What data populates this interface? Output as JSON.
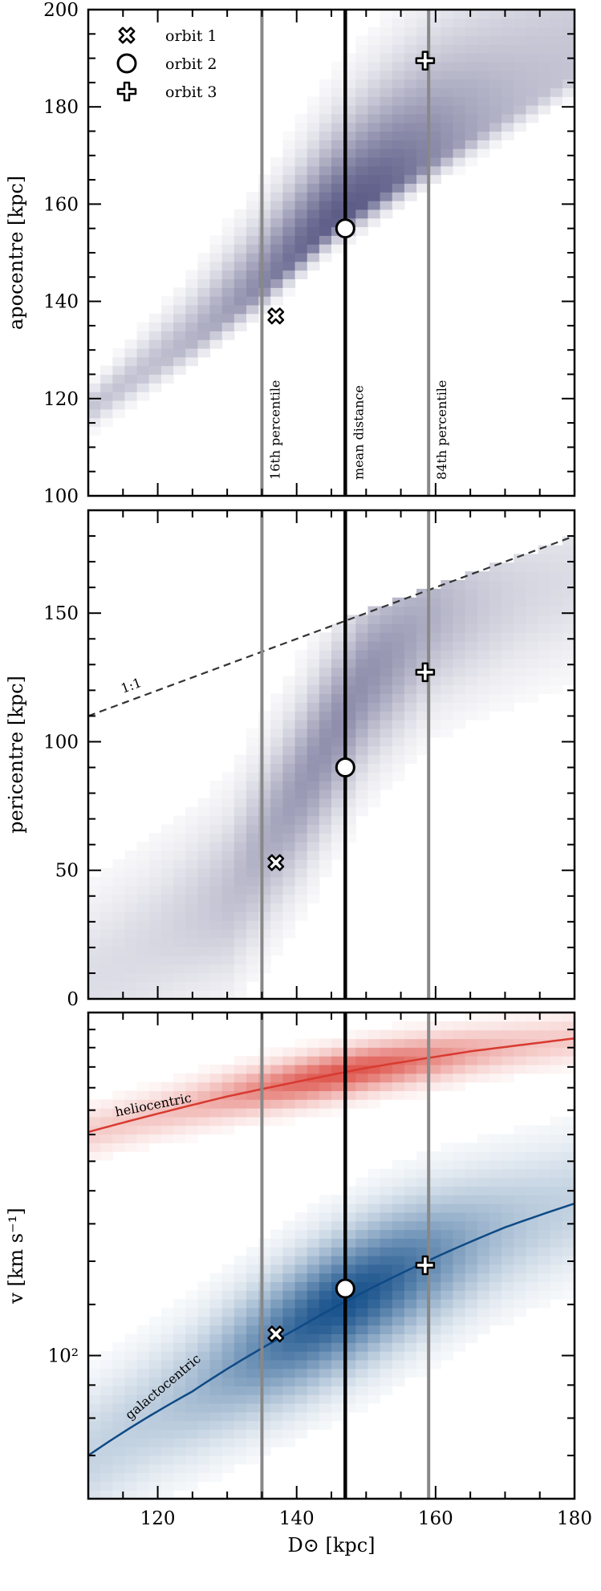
{
  "chart_data": [
    {
      "type": "heatmap",
      "panel": "apocentre",
      "ylabel": "apocentre [kpc]",
      "xlim": [
        110,
        180
      ],
      "ylim": [
        100,
        200
      ],
      "yticks": [
        100,
        120,
        140,
        160,
        180,
        200
      ],
      "colormap": "#4a4a7a",
      "ridge": [
        [
          110,
          118
        ],
        [
          125,
          132
        ],
        [
          135,
          143
        ],
        [
          145,
          156
        ],
        [
          160,
          170
        ],
        [
          175,
          183
        ]
      ],
      "legend": [
        {
          "marker": "x",
          "label": "orbit 1"
        },
        {
          "marker": "circle",
          "label": "orbit 2"
        },
        {
          "marker": "plus",
          "label": "orbit 3"
        }
      ],
      "vlines": [
        {
          "x": 135,
          "label": "16th percentile",
          "color": "#888888"
        },
        {
          "x": 147,
          "label": "mean distance",
          "color": "#000000"
        },
        {
          "x": 159,
          "label": "84th percentile",
          "color": "#888888"
        }
      ],
      "orbits": [
        {
          "marker": "x",
          "x": 137,
          "y": 137
        },
        {
          "marker": "circle",
          "x": 147,
          "y": 155
        },
        {
          "marker": "plus",
          "x": 158.5,
          "y": 189.5
        }
      ]
    },
    {
      "type": "heatmap",
      "panel": "pericentre",
      "ylabel": "pericentre [kpc]",
      "xlim": [
        110,
        180
      ],
      "ylim": [
        0,
        190
      ],
      "yticks": [
        0,
        50,
        100,
        150
      ],
      "colormap": "#4a4a7a",
      "oneToOne": {
        "label": "1:1",
        "points": [
          [
            110,
            110
          ],
          [
            180,
            180
          ]
        ]
      },
      "ridge": [
        [
          115,
          15
        ],
        [
          130,
          40
        ],
        [
          140,
          80
        ],
        [
          150,
          125
        ],
        [
          160,
          150
        ],
        [
          175,
          160
        ]
      ],
      "vlines": [
        {
          "x": 135,
          "color": "#888888"
        },
        {
          "x": 147,
          "color": "#000000"
        },
        {
          "x": 159,
          "color": "#888888"
        }
      ],
      "orbits": [
        {
          "marker": "x",
          "x": 137,
          "y": 53
        },
        {
          "marker": "circle",
          "x": 147,
          "y": 90
        },
        {
          "marker": "plus",
          "x": 158.5,
          "y": 127
        }
      ]
    },
    {
      "type": "heatmap",
      "panel": "velocity",
      "ylabel": "v [km s⁻¹]",
      "xlabel": "D⊙ [kpc]",
      "xlim": [
        110,
        180
      ],
      "xticks": [
        120,
        140,
        160,
        180
      ],
      "yscale": "log",
      "ylim": [
        60,
        340
      ],
      "ytick_major": [
        {
          "value": 100,
          "label": "10²"
        }
      ],
      "series": [
        {
          "name": "heliocentric",
          "color": "#d83a30",
          "curve": [
            [
              110,
              222
            ],
            [
              130,
              252
            ],
            [
              150,
              279
            ],
            [
              165,
              296
            ],
            [
              180,
              310
            ]
          ]
        },
        {
          "name": "galactocentric",
          "color": "#0e4a86",
          "curve": [
            [
              110,
              70
            ],
            [
              125,
              88
            ],
            [
              140,
              110
            ],
            [
              150,
              126
            ],
            [
              160,
              142
            ],
            [
              170,
              158
            ],
            [
              180,
              172
            ]
          ]
        }
      ],
      "vlines": [
        {
          "x": 135,
          "color": "#888888"
        },
        {
          "x": 147,
          "color": "#000000"
        },
        {
          "x": 159,
          "color": "#888888"
        }
      ],
      "orbits": [
        {
          "marker": "x",
          "x": 137,
          "y": 108
        },
        {
          "marker": "circle",
          "x": 147,
          "y": 127
        },
        {
          "marker": "plus",
          "x": 158.5,
          "y": 138
        }
      ]
    }
  ]
}
